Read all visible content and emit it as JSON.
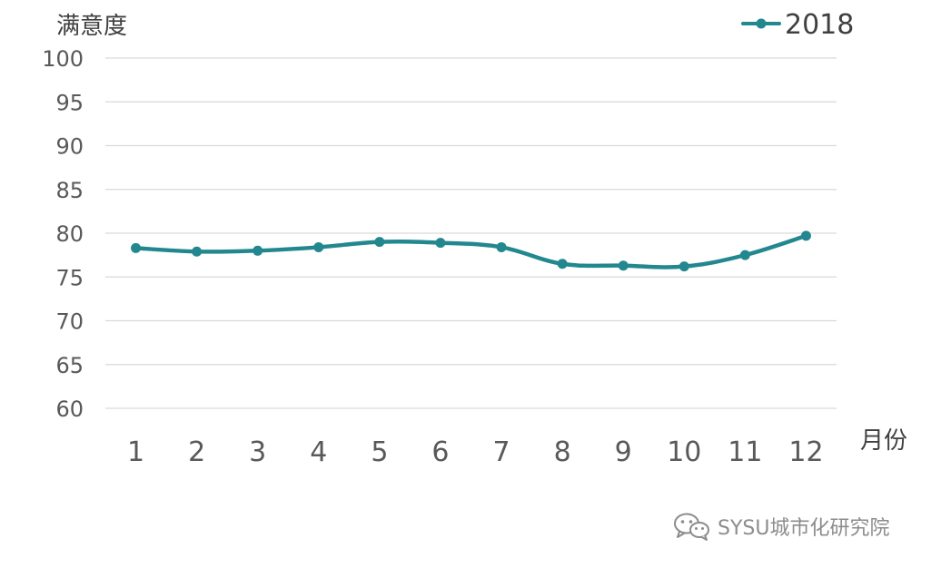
{
  "chart_data": {
    "type": "line",
    "ylabel": "满意度",
    "xlabel": "月份",
    "ylim": [
      60,
      100
    ],
    "yticks": [
      60,
      65,
      70,
      75,
      80,
      85,
      90,
      95,
      100
    ],
    "categories": [
      "1",
      "2",
      "3",
      "4",
      "5",
      "6",
      "7",
      "8",
      "9",
      "10",
      "11",
      "12"
    ],
    "series": [
      {
        "name": "2018",
        "color": "#23878f",
        "values": [
          78.3,
          77.9,
          78.0,
          78.4,
          79.0,
          78.9,
          78.4,
          76.5,
          76.3,
          76.2,
          77.5,
          79.7
        ]
      }
    ],
    "legend_position": "top-right",
    "grid": true
  },
  "watermark": {
    "text": "SYSU城市化研究院",
    "icon": "wechat-icon"
  }
}
